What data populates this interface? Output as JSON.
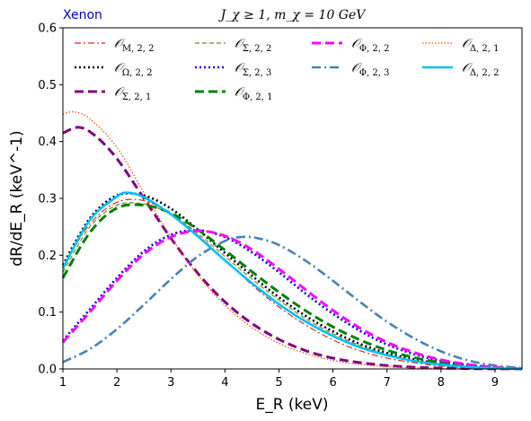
{
  "chart_data": {
    "type": "line",
    "title": "J_χ ≥ 1, m_χ = 10 GeV",
    "annotation": "Xenon",
    "xlabel": "E_R (keV)",
    "ylabel": "dR/dE_R (keV^-1)",
    "xlim": [
      1,
      9.5
    ],
    "ylim": [
      0,
      0.6
    ],
    "xticks": [
      1,
      2,
      3,
      4,
      5,
      6,
      7,
      8,
      9
    ],
    "yticks": [
      0.0,
      0.1,
      0.2,
      0.3,
      0.4,
      0.5,
      0.6
    ],
    "grid": false,
    "legend_position": "top",
    "legend_columns": 4,
    "series": [
      {
        "name": "O_{M,2,2}",
        "color": "#d62728",
        "dash": "dashdot-thin",
        "points": [
          [
            1,
            0.18
          ],
          [
            1.5,
            0.255
          ],
          [
            2,
            0.293
          ],
          [
            2.5,
            0.296
          ],
          [
            3,
            0.272
          ],
          [
            3.5,
            0.235
          ],
          [
            4,
            0.192
          ],
          [
            4.5,
            0.148
          ],
          [
            5,
            0.109
          ],
          [
            5.5,
            0.077
          ],
          [
            6,
            0.051
          ],
          [
            6.5,
            0.032
          ],
          [
            7,
            0.019
          ],
          [
            7.5,
            0.011
          ],
          [
            8,
            0.005
          ],
          [
            8.5,
            0.002
          ],
          [
            9,
            0.0006
          ],
          [
            9.5,
            0.0001
          ]
        ]
      },
      {
        "name": "O_{Ω,2,2}",
        "color": "#000000",
        "dash": "dotted",
        "points": [
          [
            1,
            0.183
          ],
          [
            1.5,
            0.265
          ],
          [
            2,
            0.305
          ],
          [
            2.5,
            0.305
          ],
          [
            3,
            0.282
          ],
          [
            3.5,
            0.245
          ],
          [
            4,
            0.204
          ],
          [
            4.5,
            0.164
          ],
          [
            5,
            0.126
          ],
          [
            5.5,
            0.093
          ],
          [
            6,
            0.066
          ],
          [
            6.5,
            0.044
          ],
          [
            7,
            0.028
          ],
          [
            7.5,
            0.017
          ],
          [
            8,
            0.009
          ],
          [
            8.5,
            0.004
          ],
          [
            9,
            0.0015
          ],
          [
            9.5,
            0.0003
          ]
        ]
      },
      {
        "name": "O_{Σ,2,1}",
        "color": "#800080",
        "dash": "dashed-thick",
        "points": [
          [
            1,
            0.415
          ],
          [
            1.3,
            0.425
          ],
          [
            1.6,
            0.41
          ],
          [
            2,
            0.37
          ],
          [
            2.5,
            0.3
          ],
          [
            3,
            0.23
          ],
          [
            3.5,
            0.168
          ],
          [
            4,
            0.118
          ],
          [
            4.5,
            0.08
          ],
          [
            5,
            0.052
          ],
          [
            5.5,
            0.032
          ],
          [
            6,
            0.019
          ],
          [
            6.5,
            0.011
          ],
          [
            7,
            0.006
          ],
          [
            7.5,
            0.003
          ],
          [
            8,
            0.0014
          ],
          [
            8.5,
            0.0006
          ],
          [
            9,
            0.0002
          ],
          [
            9.5,
            0.0001
          ]
        ]
      },
      {
        "name": "O_{Σ,2,2}",
        "color": "#6b8e23",
        "dash": "dashed-thin",
        "points": [
          [
            1,
            0.17
          ],
          [
            1.5,
            0.25
          ],
          [
            2,
            0.288
          ],
          [
            2.5,
            0.29
          ],
          [
            3,
            0.272
          ],
          [
            3.5,
            0.238
          ],
          [
            4,
            0.198
          ],
          [
            4.5,
            0.158
          ],
          [
            5,
            0.121
          ],
          [
            5.5,
            0.088
          ],
          [
            6,
            0.062
          ],
          [
            6.5,
            0.041
          ],
          [
            7,
            0.026
          ],
          [
            7.5,
            0.015
          ],
          [
            8,
            0.008
          ],
          [
            8.5,
            0.0035
          ],
          [
            9,
            0.0012
          ],
          [
            9.5,
            0.0002
          ]
        ]
      },
      {
        "name": "O_{Σ,2,3}",
        "color": "#0000ff",
        "dash": "dotted",
        "points": [
          [
            1,
            0.05
          ],
          [
            1.5,
            0.105
          ],
          [
            2,
            0.16
          ],
          [
            2.5,
            0.207
          ],
          [
            3,
            0.236
          ],
          [
            3.5,
            0.244
          ],
          [
            4,
            0.232
          ],
          [
            4.5,
            0.205
          ],
          [
            5,
            0.17
          ],
          [
            5.5,
            0.132
          ],
          [
            6,
            0.097
          ],
          [
            6.5,
            0.067
          ],
          [
            7,
            0.043
          ],
          [
            7.5,
            0.026
          ],
          [
            8,
            0.014
          ],
          [
            8.5,
            0.007
          ],
          [
            9,
            0.0025
          ],
          [
            9.5,
            0.0005
          ]
        ]
      },
      {
        "name": "O_{Φ,2,1}",
        "color": "#008000",
        "dash": "dashed-thick",
        "points": [
          [
            1,
            0.16
          ],
          [
            1.5,
            0.24
          ],
          [
            2,
            0.283
          ],
          [
            2.5,
            0.288
          ],
          [
            3,
            0.274
          ],
          [
            3.5,
            0.245
          ],
          [
            4,
            0.209
          ],
          [
            4.5,
            0.171
          ],
          [
            5,
            0.135
          ],
          [
            5.5,
            0.102
          ],
          [
            6,
            0.074
          ],
          [
            6.5,
            0.051
          ],
          [
            7,
            0.033
          ],
          [
            7.5,
            0.02
          ],
          [
            8,
            0.011
          ],
          [
            8.5,
            0.005
          ],
          [
            9,
            0.0018
          ],
          [
            9.5,
            0.0003
          ]
        ]
      },
      {
        "name": "O_{Φ,2,2}",
        "color": "#ff00ff",
        "dash": "dashed-thick",
        "points": [
          [
            1,
            0.047
          ],
          [
            1.5,
            0.1
          ],
          [
            2,
            0.155
          ],
          [
            2.5,
            0.202
          ],
          [
            3,
            0.232
          ],
          [
            3.5,
            0.243
          ],
          [
            4,
            0.234
          ],
          [
            4.5,
            0.21
          ],
          [
            5,
            0.176
          ],
          [
            5.5,
            0.139
          ],
          [
            6,
            0.103
          ],
          [
            6.5,
            0.072
          ],
          [
            7,
            0.047
          ],
          [
            7.5,
            0.029
          ],
          [
            8,
            0.016
          ],
          [
            8.5,
            0.008
          ],
          [
            9,
            0.003
          ],
          [
            9.5,
            0.0006
          ]
        ]
      },
      {
        "name": "O_{Φ,2,3}",
        "color": "#4682b4",
        "dash": "dashdot-thick",
        "points": [
          [
            1,
            0.012
          ],
          [
            1.5,
            0.035
          ],
          [
            2,
            0.07
          ],
          [
            2.5,
            0.113
          ],
          [
            3,
            0.158
          ],
          [
            3.5,
            0.198
          ],
          [
            4,
            0.225
          ],
          [
            4.3,
            0.232
          ],
          [
            4.6,
            0.23
          ],
          [
            5,
            0.218
          ],
          [
            5.5,
            0.19
          ],
          [
            6,
            0.155
          ],
          [
            6.5,
            0.118
          ],
          [
            7,
            0.083
          ],
          [
            7.5,
            0.054
          ],
          [
            8,
            0.031
          ],
          [
            8.5,
            0.015
          ],
          [
            9,
            0.006
          ],
          [
            9.5,
            0.0015
          ]
        ]
      },
      {
        "name": "O_{Δ,2,1}",
        "color": "#ff4500",
        "dash": "dotted-thin",
        "points": [
          [
            1,
            0.448
          ],
          [
            1.2,
            0.452
          ],
          [
            1.5,
            0.44
          ],
          [
            2,
            0.39
          ],
          [
            2.5,
            0.31
          ],
          [
            3,
            0.232
          ],
          [
            3.5,
            0.165
          ],
          [
            4,
            0.112
          ],
          [
            4.5,
            0.073
          ],
          [
            5,
            0.045
          ],
          [
            5.5,
            0.027
          ],
          [
            6,
            0.015
          ],
          [
            6.5,
            0.008
          ],
          [
            7,
            0.004
          ],
          [
            7.5,
            0.002
          ],
          [
            8,
            0.0008
          ],
          [
            8.5,
            0.0003
          ],
          [
            9,
            0.0001
          ],
          [
            9.5,
            0.0
          ]
        ]
      },
      {
        "name": "O_{Δ,2,2}",
        "color": "#00bfff",
        "dash": "solid",
        "points": [
          [
            1,
            0.177
          ],
          [
            1.5,
            0.262
          ],
          [
            2,
            0.303
          ],
          [
            2.2,
            0.31
          ],
          [
            2.5,
            0.302
          ],
          [
            3,
            0.272
          ],
          [
            3.5,
            0.233
          ],
          [
            4,
            0.191
          ],
          [
            4.5,
            0.151
          ],
          [
            5,
            0.114
          ],
          [
            5.5,
            0.083
          ],
          [
            6,
            0.058
          ],
          [
            6.5,
            0.038
          ],
          [
            7,
            0.024
          ],
          [
            7.5,
            0.014
          ],
          [
            8,
            0.0075
          ],
          [
            8.5,
            0.0035
          ],
          [
            9,
            0.0012
          ],
          [
            9.5,
            0.0002
          ]
        ]
      }
    ]
  },
  "legend": {
    "items": [
      {
        "base": "𝒪",
        "sub": "M, 2, 2"
      },
      {
        "base": "𝒪",
        "sub": "Σ, 2, 2"
      },
      {
        "base": "𝒪",
        "sub": "Φ, 2, 2"
      },
      {
        "base": "𝒪",
        "sub": "Δ, 2, 1"
      },
      {
        "base": "𝒪",
        "sub": "Ω, 2, 2"
      },
      {
        "base": "𝒪",
        "sub": "Σ, 2, 3"
      },
      {
        "base": "𝒪",
        "sub": "Φ, 2, 3"
      },
      {
        "base": "𝒪",
        "sub": "Δ, 2, 2"
      },
      {
        "base": "𝒪",
        "sub": "Σ, 2, 1"
      },
      {
        "base": "𝒪",
        "sub": "Φ, 2, 1"
      }
    ],
    "series_order": [
      0,
      3,
      6,
      8,
      1,
      4,
      7,
      9,
      2,
      5
    ]
  },
  "colors": {
    "annotation": "#0000cd"
  }
}
